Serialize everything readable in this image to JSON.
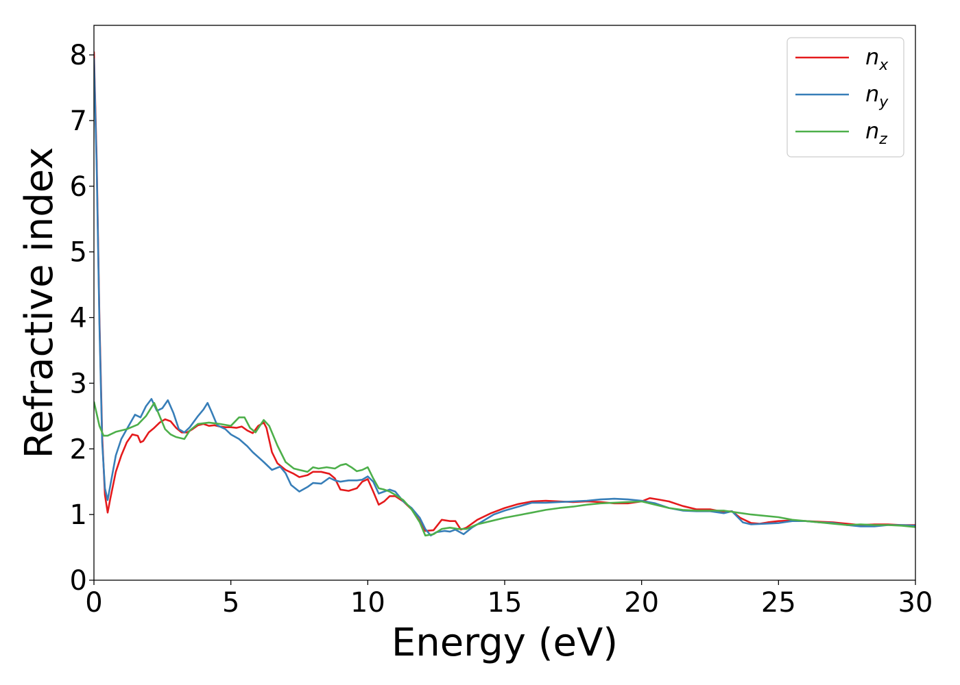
{
  "chart_data": {
    "type": "line",
    "xlabel": "Energy (eV)",
    "ylabel": "Refractive index",
    "xlim": [
      0,
      30
    ],
    "ylim": [
      0,
      8.45
    ],
    "xticks": [
      0,
      5,
      10,
      15,
      20,
      25,
      30
    ],
    "yticks": [
      0,
      1,
      2,
      3,
      4,
      5,
      6,
      7,
      8
    ],
    "xtick_labels": [
      "0",
      "5",
      "10",
      "15",
      "20",
      "25",
      "30"
    ],
    "ytick_labels": [
      "0",
      "1",
      "2",
      "3",
      "4",
      "5",
      "6",
      "7",
      "8"
    ],
    "grid": false,
    "legend_position": "top-right",
    "series": [
      {
        "name": "n",
        "name_subscript": "x",
        "color": "#e41a1c",
        "points": [
          [
            0.0,
            8.05
          ],
          [
            0.1,
            6.4
          ],
          [
            0.2,
            4.0
          ],
          [
            0.3,
            2.2
          ],
          [
            0.4,
            1.3
          ],
          [
            0.5,
            1.03
          ],
          [
            0.6,
            1.25
          ],
          [
            0.8,
            1.65
          ],
          [
            1.0,
            1.9
          ],
          [
            1.2,
            2.1
          ],
          [
            1.4,
            2.22
          ],
          [
            1.6,
            2.2
          ],
          [
            1.7,
            2.1
          ],
          [
            1.8,
            2.12
          ],
          [
            2.0,
            2.25
          ],
          [
            2.2,
            2.32
          ],
          [
            2.4,
            2.4
          ],
          [
            2.6,
            2.45
          ],
          [
            2.8,
            2.42
          ],
          [
            3.0,
            2.32
          ],
          [
            3.2,
            2.25
          ],
          [
            3.4,
            2.25
          ],
          [
            3.6,
            2.3
          ],
          [
            3.8,
            2.36
          ],
          [
            4.0,
            2.38
          ],
          [
            4.2,
            2.35
          ],
          [
            4.4,
            2.36
          ],
          [
            4.6,
            2.34
          ],
          [
            4.8,
            2.33
          ],
          [
            5.0,
            2.33
          ],
          [
            5.2,
            2.32
          ],
          [
            5.4,
            2.34
          ],
          [
            5.6,
            2.28
          ],
          [
            5.8,
            2.24
          ],
          [
            6.0,
            2.35
          ],
          [
            6.2,
            2.4
          ],
          [
            6.3,
            2.32
          ],
          [
            6.5,
            1.95
          ],
          [
            6.7,
            1.78
          ],
          [
            7.0,
            1.68
          ],
          [
            7.3,
            1.62
          ],
          [
            7.5,
            1.57
          ],
          [
            7.8,
            1.6
          ],
          [
            8.0,
            1.65
          ],
          [
            8.3,
            1.65
          ],
          [
            8.6,
            1.62
          ],
          [
            8.8,
            1.55
          ],
          [
            9.0,
            1.38
          ],
          [
            9.3,
            1.36
          ],
          [
            9.6,
            1.4
          ],
          [
            9.8,
            1.5
          ],
          [
            10.0,
            1.54
          ],
          [
            10.2,
            1.35
          ],
          [
            10.4,
            1.15
          ],
          [
            10.6,
            1.2
          ],
          [
            10.8,
            1.28
          ],
          [
            11.0,
            1.28
          ],
          [
            11.3,
            1.2
          ],
          [
            11.6,
            1.08
          ],
          [
            11.9,
            0.9
          ],
          [
            12.1,
            0.75
          ],
          [
            12.4,
            0.76
          ],
          [
            12.7,
            0.92
          ],
          [
            13.0,
            0.9
          ],
          [
            13.2,
            0.9
          ],
          [
            13.4,
            0.77
          ],
          [
            13.6,
            0.8
          ],
          [
            14.0,
            0.92
          ],
          [
            14.5,
            1.02
          ],
          [
            15.0,
            1.1
          ],
          [
            15.5,
            1.16
          ],
          [
            16.0,
            1.2
          ],
          [
            16.5,
            1.21
          ],
          [
            17.0,
            1.2
          ],
          [
            17.5,
            1.19
          ],
          [
            18.0,
            1.2
          ],
          [
            18.5,
            1.19
          ],
          [
            19.0,
            1.17
          ],
          [
            19.5,
            1.17
          ],
          [
            20.0,
            1.2
          ],
          [
            20.3,
            1.25
          ],
          [
            20.6,
            1.23
          ],
          [
            21.0,
            1.2
          ],
          [
            21.5,
            1.13
          ],
          [
            22.0,
            1.08
          ],
          [
            22.5,
            1.08
          ],
          [
            23.0,
            1.04
          ],
          [
            23.3,
            1.05
          ],
          [
            23.6,
            0.95
          ],
          [
            24.0,
            0.87
          ],
          [
            24.3,
            0.86
          ],
          [
            24.6,
            0.88
          ],
          [
            25.0,
            0.9
          ],
          [
            25.5,
            0.91
          ],
          [
            26.0,
            0.9
          ],
          [
            26.5,
            0.89
          ],
          [
            27.0,
            0.88
          ],
          [
            27.5,
            0.86
          ],
          [
            28.0,
            0.84
          ],
          [
            28.5,
            0.85
          ],
          [
            29.0,
            0.85
          ],
          [
            29.5,
            0.84
          ],
          [
            30.0,
            0.84
          ]
        ]
      },
      {
        "name": "n",
        "name_subscript": "y",
        "color": "#377eb8",
        "points": [
          [
            0.0,
            7.95
          ],
          [
            0.1,
            6.3
          ],
          [
            0.2,
            3.9
          ],
          [
            0.3,
            2.1
          ],
          [
            0.4,
            1.4
          ],
          [
            0.5,
            1.22
          ],
          [
            0.6,
            1.45
          ],
          [
            0.8,
            1.9
          ],
          [
            1.0,
            2.15
          ],
          [
            1.2,
            2.3
          ],
          [
            1.5,
            2.52
          ],
          [
            1.7,
            2.48
          ],
          [
            1.9,
            2.65
          ],
          [
            2.1,
            2.76
          ],
          [
            2.3,
            2.58
          ],
          [
            2.5,
            2.62
          ],
          [
            2.7,
            2.74
          ],
          [
            2.9,
            2.55
          ],
          [
            3.1,
            2.3
          ],
          [
            3.3,
            2.25
          ],
          [
            3.5,
            2.33
          ],
          [
            3.8,
            2.5
          ],
          [
            4.0,
            2.6
          ],
          [
            4.15,
            2.7
          ],
          [
            4.3,
            2.56
          ],
          [
            4.5,
            2.36
          ],
          [
            4.8,
            2.3
          ],
          [
            5.0,
            2.22
          ],
          [
            5.3,
            2.15
          ],
          [
            5.6,
            2.04
          ],
          [
            5.8,
            1.95
          ],
          [
            6.2,
            1.8
          ],
          [
            6.5,
            1.68
          ],
          [
            6.8,
            1.73
          ],
          [
            7.0,
            1.63
          ],
          [
            7.2,
            1.45
          ],
          [
            7.5,
            1.35
          ],
          [
            7.8,
            1.42
          ],
          [
            8.0,
            1.48
          ],
          [
            8.3,
            1.47
          ],
          [
            8.6,
            1.56
          ],
          [
            8.8,
            1.52
          ],
          [
            9.0,
            1.5
          ],
          [
            9.3,
            1.52
          ],
          [
            9.6,
            1.52
          ],
          [
            9.8,
            1.53
          ],
          [
            10.0,
            1.58
          ],
          [
            10.2,
            1.5
          ],
          [
            10.4,
            1.32
          ],
          [
            10.6,
            1.35
          ],
          [
            10.8,
            1.38
          ],
          [
            11.0,
            1.35
          ],
          [
            11.3,
            1.2
          ],
          [
            11.6,
            1.1
          ],
          [
            11.9,
            0.95
          ],
          [
            12.1,
            0.78
          ],
          [
            12.3,
            0.68
          ],
          [
            12.5,
            0.73
          ],
          [
            12.8,
            0.75
          ],
          [
            13.0,
            0.74
          ],
          [
            13.2,
            0.77
          ],
          [
            13.5,
            0.7
          ],
          [
            13.8,
            0.8
          ],
          [
            14.2,
            0.9
          ],
          [
            14.6,
            1.0
          ],
          [
            15.0,
            1.06
          ],
          [
            15.5,
            1.12
          ],
          [
            16.0,
            1.18
          ],
          [
            16.5,
            1.18
          ],
          [
            17.0,
            1.19
          ],
          [
            17.5,
            1.2
          ],
          [
            18.0,
            1.21
          ],
          [
            18.5,
            1.23
          ],
          [
            19.0,
            1.24
          ],
          [
            19.5,
            1.23
          ],
          [
            20.0,
            1.21
          ],
          [
            20.5,
            1.17
          ],
          [
            21.0,
            1.1
          ],
          [
            21.5,
            1.06
          ],
          [
            22.0,
            1.05
          ],
          [
            22.5,
            1.05
          ],
          [
            23.0,
            1.02
          ],
          [
            23.3,
            1.05
          ],
          [
            23.7,
            0.88
          ],
          [
            24.0,
            0.85
          ],
          [
            24.5,
            0.86
          ],
          [
            25.0,
            0.87
          ],
          [
            25.5,
            0.9
          ],
          [
            26.0,
            0.9
          ],
          [
            26.5,
            0.88
          ],
          [
            27.0,
            0.87
          ],
          [
            27.5,
            0.84
          ],
          [
            28.0,
            0.82
          ],
          [
            28.5,
            0.82
          ],
          [
            29.0,
            0.84
          ],
          [
            29.5,
            0.84
          ],
          [
            30.0,
            0.83
          ]
        ]
      },
      {
        "name": "n",
        "name_subscript": "z",
        "color": "#4daf4a",
        "points": [
          [
            0.0,
            2.72
          ],
          [
            0.2,
            2.35
          ],
          [
            0.35,
            2.2
          ],
          [
            0.5,
            2.2
          ],
          [
            0.8,
            2.26
          ],
          [
            1.2,
            2.3
          ],
          [
            1.6,
            2.37
          ],
          [
            1.9,
            2.5
          ],
          [
            2.2,
            2.7
          ],
          [
            2.4,
            2.5
          ],
          [
            2.6,
            2.3
          ],
          [
            2.8,
            2.22
          ],
          [
            3.0,
            2.18
          ],
          [
            3.3,
            2.15
          ],
          [
            3.5,
            2.28
          ],
          [
            3.8,
            2.38
          ],
          [
            4.2,
            2.4
          ],
          [
            4.6,
            2.38
          ],
          [
            5.0,
            2.35
          ],
          [
            5.3,
            2.48
          ],
          [
            5.5,
            2.48
          ],
          [
            5.7,
            2.32
          ],
          [
            5.9,
            2.25
          ],
          [
            6.2,
            2.44
          ],
          [
            6.4,
            2.35
          ],
          [
            6.7,
            2.05
          ],
          [
            7.0,
            1.8
          ],
          [
            7.3,
            1.7
          ],
          [
            7.5,
            1.68
          ],
          [
            7.8,
            1.65
          ],
          [
            8.0,
            1.72
          ],
          [
            8.2,
            1.7
          ],
          [
            8.5,
            1.72
          ],
          [
            8.8,
            1.7
          ],
          [
            9.0,
            1.75
          ],
          [
            9.2,
            1.77
          ],
          [
            9.4,
            1.72
          ],
          [
            9.6,
            1.66
          ],
          [
            9.8,
            1.68
          ],
          [
            10.0,
            1.72
          ],
          [
            10.2,
            1.55
          ],
          [
            10.4,
            1.4
          ],
          [
            10.6,
            1.38
          ],
          [
            10.8,
            1.35
          ],
          [
            11.0,
            1.3
          ],
          [
            11.3,
            1.22
          ],
          [
            11.6,
            1.08
          ],
          [
            11.9,
            0.88
          ],
          [
            12.1,
            0.68
          ],
          [
            12.4,
            0.7
          ],
          [
            12.7,
            0.78
          ],
          [
            13.0,
            0.8
          ],
          [
            13.3,
            0.78
          ],
          [
            13.6,
            0.78
          ],
          [
            14.0,
            0.85
          ],
          [
            14.5,
            0.9
          ],
          [
            15.0,
            0.95
          ],
          [
            15.5,
            0.99
          ],
          [
            16.0,
            1.03
          ],
          [
            16.5,
            1.07
          ],
          [
            17.0,
            1.1
          ],
          [
            17.5,
            1.12
          ],
          [
            18.0,
            1.15
          ],
          [
            18.5,
            1.17
          ],
          [
            19.0,
            1.18
          ],
          [
            19.5,
            1.19
          ],
          [
            20.0,
            1.2
          ],
          [
            20.5,
            1.15
          ],
          [
            21.0,
            1.1
          ],
          [
            21.5,
            1.07
          ],
          [
            22.0,
            1.06
          ],
          [
            22.5,
            1.06
          ],
          [
            23.0,
            1.06
          ],
          [
            23.5,
            1.03
          ],
          [
            24.0,
            1.0
          ],
          [
            24.5,
            0.98
          ],
          [
            25.0,
            0.96
          ],
          [
            25.5,
            0.92
          ],
          [
            26.0,
            0.9
          ],
          [
            26.5,
            0.88
          ],
          [
            27.0,
            0.86
          ],
          [
            27.5,
            0.84
          ],
          [
            28.0,
            0.85
          ],
          [
            28.5,
            0.84
          ],
          [
            29.0,
            0.84
          ],
          [
            29.5,
            0.83
          ],
          [
            30.0,
            0.81
          ]
        ]
      }
    ]
  }
}
